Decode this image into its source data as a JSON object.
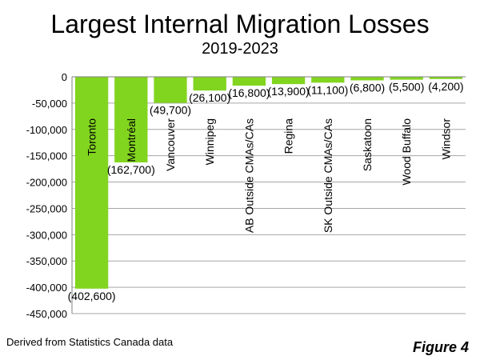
{
  "header": {
    "title": "Largest Internal Migration Losses",
    "subtitle": "2019-2023"
  },
  "footer": {
    "source": "Derived from Statistics Canada data",
    "figure": "Figure 4"
  },
  "colors": {
    "bar": "#82D51F",
    "grid": "#A6A6A6"
  },
  "chart_data": {
    "type": "bar",
    "title": "Largest Internal Migration Losses",
    "subtitle": "2019-2023",
    "xlabel": "",
    "ylabel": "",
    "categories": [
      "Toronto",
      "Montréal",
      "Vancouver",
      "Winnipeg",
      "AB Outside CMAs/CAs",
      "Regina",
      "SK Outside CMAs/CAs",
      "Saskatoon",
      "Wood Buffalo",
      "Windsor"
    ],
    "values": [
      -402600,
      -162700,
      -49700,
      -26100,
      -16800,
      -13900,
      -11100,
      -6800,
      -5500,
      -4200
    ],
    "data_labels": [
      "(402,600)",
      "(162,700)",
      "(49,700)",
      "(26,100)",
      "(16,800)",
      "(13,900)",
      "(11,100)",
      "(6,800)",
      "(5,500)",
      "(4,200)"
    ],
    "yticks": [
      0,
      -50000,
      -100000,
      -150000,
      -200000,
      -250000,
      -300000,
      -350000,
      -400000,
      -450000
    ],
    "ytick_labels": [
      "0",
      "-50,000",
      "-100,000",
      "-150,000",
      "-200,000",
      "-250,000",
      "-300,000",
      "-350,000",
      "-400,000",
      "-450,000"
    ],
    "ylim": [
      -450000,
      0
    ],
    "grid": true,
    "legend": "none"
  }
}
